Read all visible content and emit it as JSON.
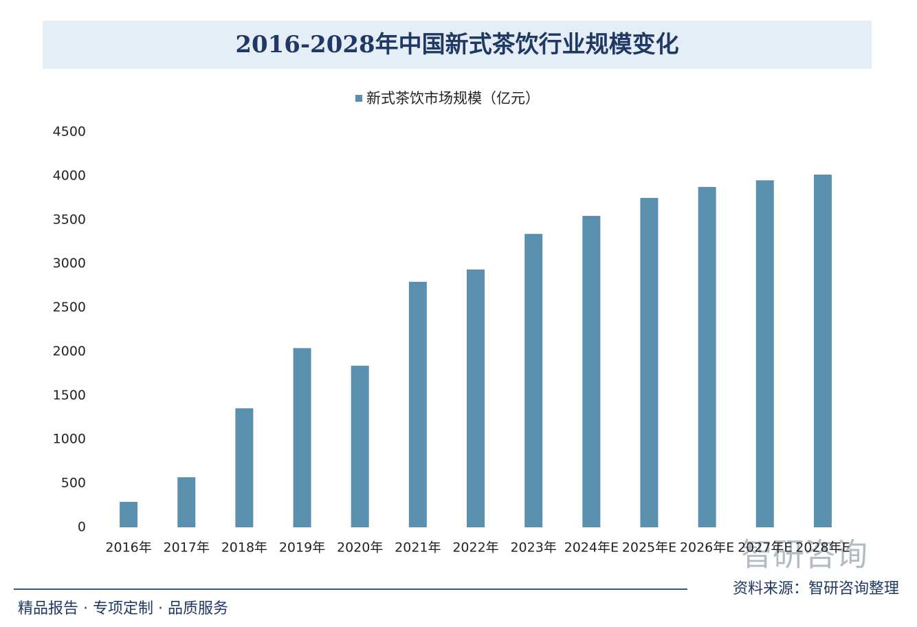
{
  "chart_data": {
    "type": "bar",
    "title": "2016-2028年中国新式茶饮行业规模变化",
    "categories": [
      "2016年",
      "2017年",
      "2018年",
      "2019年",
      "2020年",
      "2021年",
      "2022年",
      "2023年",
      "2024年E",
      "2025年E",
      "2026年E",
      "2027年E",
      "2028年E"
    ],
    "series": [
      {
        "name": "新式茶饮市场规模（亿元）",
        "color": "#5a8fae",
        "values": [
          290,
          570,
          1355,
          2040,
          1840,
          2795,
          2935,
          3340,
          3545,
          3750,
          3875,
          3950,
          4015
        ]
      }
    ],
    "ylim": [
      0,
      4500
    ],
    "yticks": [
      0,
      500,
      1000,
      1500,
      2000,
      2500,
      3000,
      3500,
      4000,
      4500
    ],
    "grid": false,
    "legend": "top"
  },
  "logo": "智研咨询",
  "source": "资料来源：智研咨询整理",
  "footer": "精品报告 · 专项定制 · 品质服务"
}
